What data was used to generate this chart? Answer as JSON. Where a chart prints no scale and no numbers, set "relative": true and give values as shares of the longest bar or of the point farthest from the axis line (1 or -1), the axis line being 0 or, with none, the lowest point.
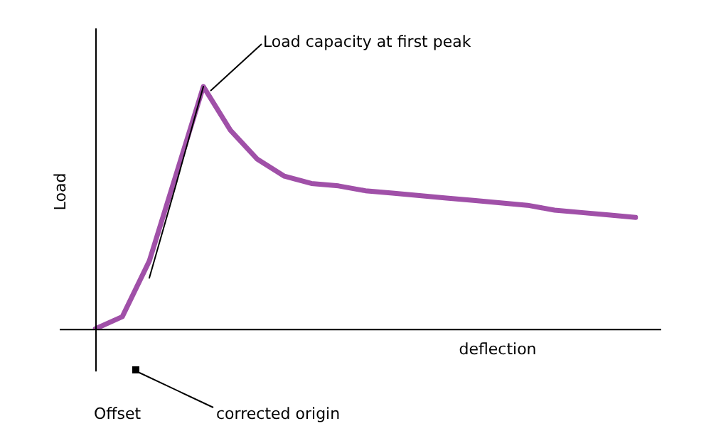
{
  "chart_data": {
    "type": "line",
    "relative": true,
    "xlabel": "deflection",
    "ylabel": "Load",
    "categories": [
      null,
      null,
      null,
      null,
      null,
      null,
      null,
      null,
      null,
      null,
      null,
      null,
      null,
      null,
      null,
      null,
      null,
      null,
      null,
      null,
      null
    ],
    "series": [
      {
        "color": "#a050a8",
        "values": [
          0,
          0.05,
          0.28,
          0.64,
          1,
          0.82,
          0.7,
          0.63,
          0.6,
          0.59,
          0.57,
          0.56,
          0.55,
          0.54,
          0.53,
          0.52,
          0.51,
          0.49,
          0.48,
          0.47,
          0.46
        ]
      },
      {
        "color": "#000000",
        "values": [
          null,
          null,
          0.21,
          0.6,
          1,
          null,
          null,
          null,
          null,
          null,
          null,
          null,
          null,
          null,
          null,
          null,
          null,
          null,
          null,
          null,
          null
        ]
      }
    ],
    "annotations": [
      "Load capacity at first peak",
      "Offset",
      "corrected origin"
    ],
    "legend": false,
    "grid": false,
    "marker": "none",
    "line_style": "solid"
  }
}
